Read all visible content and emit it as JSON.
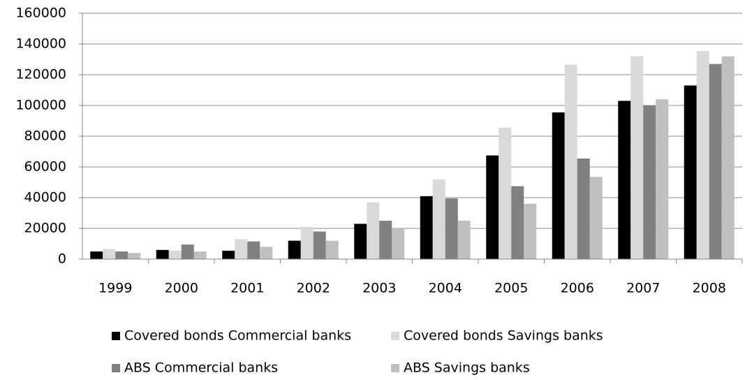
{
  "chart_data": {
    "type": "bar",
    "categories": [
      "1999",
      "2000",
      "2001",
      "2002",
      "2003",
      "2004",
      "2005",
      "2006",
      "2007",
      "2008"
    ],
    "series": [
      {
        "name": "Covered bonds Commercial banks",
        "color": "#000000",
        "values": [
          5000,
          6000,
          5500,
          12000,
          23000,
          41000,
          67500,
          95500,
          103000,
          113000
        ]
      },
      {
        "name": "Covered bonds Savings banks",
        "color": "#d9d9d9",
        "values": [
          6500,
          5500,
          13000,
          21000,
          37000,
          52000,
          85500,
          126500,
          132000,
          135500
        ]
      },
      {
        "name": "ABS Commercial banks",
        "color": "#808080",
        "values": [
          5000,
          9500,
          11500,
          18000,
          25000,
          39500,
          47500,
          65500,
          100000,
          127000
        ]
      },
      {
        "name": "ABS Savings banks",
        "color": "#bfbfbf",
        "values": [
          4000,
          5000,
          8000,
          12000,
          20000,
          25000,
          36000,
          53500,
          104000,
          132000
        ]
      }
    ],
    "ylim": [
      0,
      160000
    ],
    "yticks": [
      0,
      20000,
      40000,
      60000,
      80000,
      100000,
      120000,
      140000,
      160000
    ],
    "grid": true
  }
}
